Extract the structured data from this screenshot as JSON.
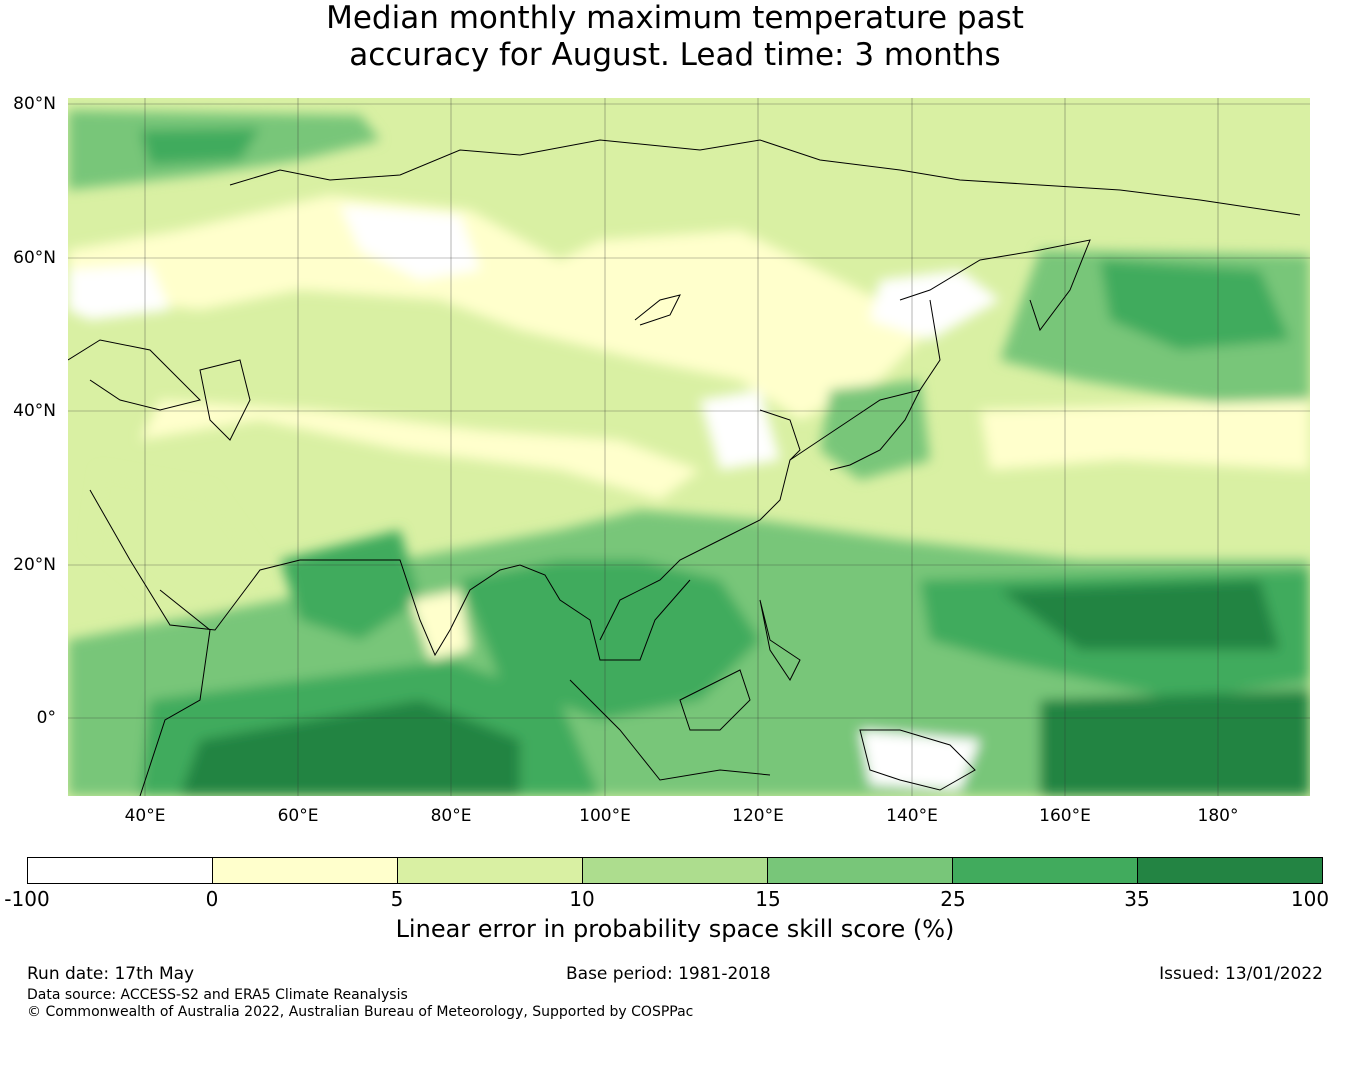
{
  "title": {
    "line1": "Median monthly maximum temperature past",
    "line2": "accuracy for August. Lead time: 3 months"
  },
  "map": {
    "region": "Asia-Pacific",
    "lat_labels": [
      "80°N",
      "60°N",
      "40°N",
      "20°N",
      "0°"
    ],
    "lon_labels": [
      "40°E",
      "60°E",
      "80°E",
      "100°E",
      "120°E",
      "140°E",
      "160°E",
      "180°"
    ],
    "grid": true,
    "skill_colors": {
      "below_0": "#ffffff",
      "0_5": "#ffffcc",
      "5_10": "#d9f0a3",
      "10_15": "#addd8e",
      "15_25": "#78c679",
      "25_35": "#41ab5d",
      "35_100": "#238443"
    }
  },
  "colorbar": {
    "ticks": [
      "-100",
      "0",
      "5",
      "10",
      "15",
      "25",
      "35",
      "100"
    ],
    "colors": [
      "#ffffff",
      "#ffffcc",
      "#d9f0a3",
      "#addd8e",
      "#78c679",
      "#41ab5d",
      "#238443"
    ],
    "label": "Linear error in probability space skill score (%)"
  },
  "footer": {
    "run_date": "Run date: 17th May",
    "base_period": "Base period: 1981-2018",
    "issued": "Issued: 13/01/2022",
    "data_source": "Data source: ACCESS-S2 and ERA5 Climate Reanalysis",
    "copyright": "© Commonwealth of Australia 2022, Australian Bureau of Meteorology, Supported by COSPPac"
  }
}
